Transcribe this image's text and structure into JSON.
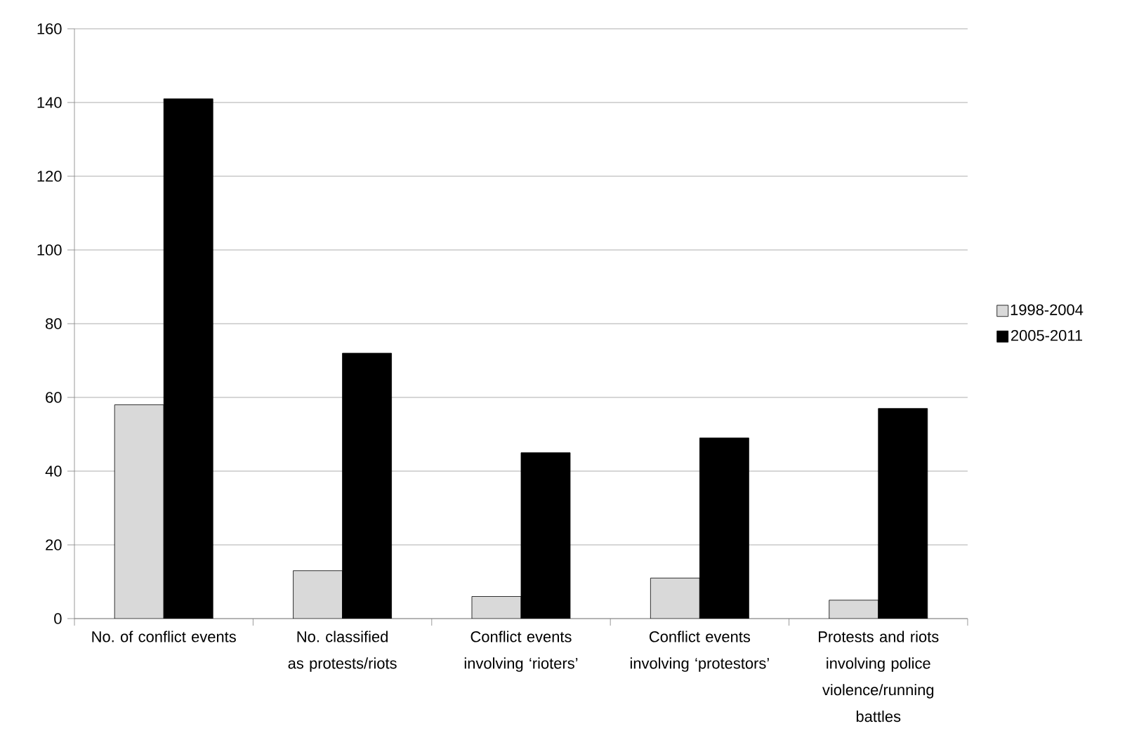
{
  "chart_data": {
    "type": "bar",
    "categories": [
      "No. of conflict events",
      "No. classified as protests/riots",
      "Conflict events involving ‘rioters’",
      "Conflict events involving ‘protestors’",
      "Protests and riots involving police violence/running battles"
    ],
    "series": [
      {
        "name": "1998-2004",
        "color": "#d9d9d9",
        "values": [
          58,
          13,
          6,
          11,
          5
        ]
      },
      {
        "name": "2005-2011",
        "color": "#000000",
        "values": [
          141,
          72,
          45,
          49,
          57
        ]
      }
    ],
    "ylim": [
      0,
      160
    ],
    "yticks": [
      0,
      20,
      40,
      60,
      80,
      100,
      120,
      140,
      160
    ],
    "grid": "y",
    "legend": "right"
  }
}
